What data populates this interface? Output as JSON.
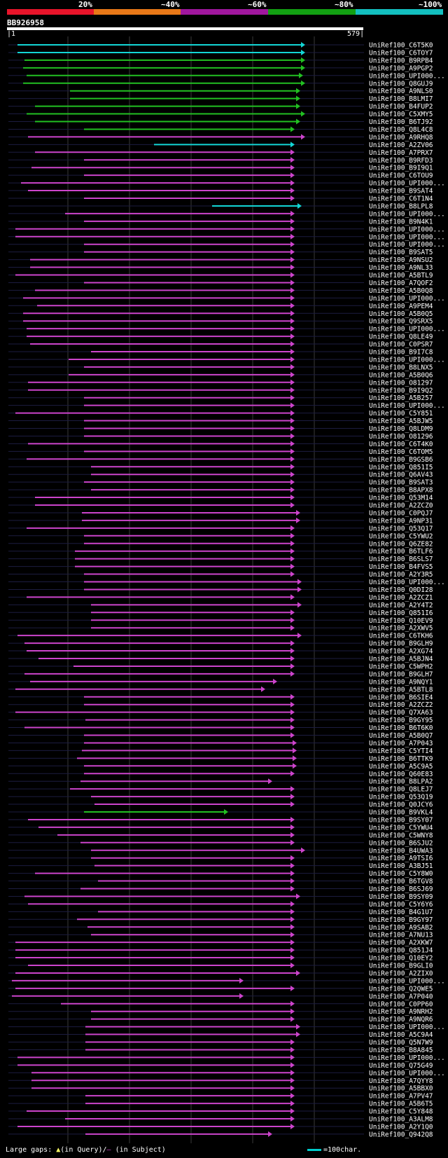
{
  "legend": {
    "labels": [
      "20%",
      "~40%",
      "~60%",
      "~80%",
      "~100%"
    ],
    "colors": [
      "#e8142a",
      "#e87818",
      "#a0179e",
      "#12a012",
      "#13c0c0"
    ]
  },
  "query": {
    "name": "BB926958",
    "start": "1",
    "end": "579"
  },
  "footer": {
    "prefix": "Large gaps: ",
    "query_marker": "▲",
    "query_text": "(in Query)/",
    "subject_marker": "–",
    "subject_text": " (in Subject)",
    "scale_text": "=100char."
  },
  "hits": [
    {
      "label": "UniRef100_C6T5K0",
      "x1": 25,
      "x2": 435,
      "c": "cyan"
    },
    {
      "label": "UniRef100_C6TOY7",
      "x1": 25,
      "x2": 435,
      "c": "cyan"
    },
    {
      "label": "UniRef100_B9RPB4",
      "x1": 35,
      "x2": 435,
      "c": "green"
    },
    {
      "label": "UniRef100_A9PGP2",
      "x1": 33,
      "x2": 435,
      "c": "green"
    },
    {
      "label": "UniRef100_UPI000...",
      "x1": 38,
      "x2": 432,
      "c": "green"
    },
    {
      "label": "UniRef100_Q8GUJ9",
      "x1": 33,
      "x2": 435,
      "c": "green"
    },
    {
      "label": "UniRef100_A9NLS0",
      "x1": 100,
      "x2": 428,
      "c": "green"
    },
    {
      "label": "UniRef100_B8LMI7",
      "x1": 100,
      "x2": 428,
      "c": "green"
    },
    {
      "label": "UniRef100_B4FUP2",
      "x1": 50,
      "x2": 428,
      "c": "green"
    },
    {
      "label": "UniRef100_C5XMY5",
      "x1": 38,
      "x2": 435,
      "c": "green"
    },
    {
      "label": "UniRef100_B6TJ92",
      "x1": 50,
      "x2": 428,
      "c": "green"
    },
    {
      "label": "UniRef100_Q8L4C8",
      "x1": 120,
      "x2": 420,
      "c": "green"
    },
    {
      "label": "UniRef100_A9RHQ8",
      "x1": 40,
      "x2": 435,
      "c": "purple"
    },
    {
      "label": "UniRef100_A2ZV06",
      "x1": 220,
      "x2": 420,
      "c": "cyan"
    },
    {
      "label": "UniRef100_A7PRX7",
      "x1": 50,
      "x2": 420,
      "c": "purple"
    },
    {
      "label": "UniRef100_B9RFD3",
      "x1": 120,
      "x2": 420,
      "c": "purple"
    },
    {
      "label": "UniRef100_B9I9Q1",
      "x1": 45,
      "x2": 420,
      "c": "purple"
    },
    {
      "label": "UniRef100_C6TOU9",
      "x1": 120,
      "x2": 420,
      "c": "purple"
    },
    {
      "label": "UniRef100_UPI000...",
      "x1": 30,
      "x2": 420,
      "c": "purple"
    },
    {
      "label": "UniRef100_B9SAT4",
      "x1": 40,
      "x2": 420,
      "c": "purple"
    },
    {
      "label": "UniRef100_C6T1N4",
      "x1": 120,
      "x2": 420,
      "c": "purple"
    },
    {
      "label": "UniRef100_B8LPL8",
      "x1": 303,
      "x2": 430,
      "c": "cyan"
    },
    {
      "label": "UniRef100_UPI000...",
      "x1": 93,
      "x2": 420,
      "c": "purple"
    },
    {
      "label": "UniRef100_B9N4K1",
      "x1": 120,
      "x2": 420,
      "c": "purple"
    },
    {
      "label": "UniRef100_UPI000...",
      "x1": 22,
      "x2": 420,
      "c": "purple"
    },
    {
      "label": "UniRef100_UPI000...",
      "x1": 22,
      "x2": 420,
      "c": "purple"
    },
    {
      "label": "UniRef100_UPI000...",
      "x1": 120,
      "x2": 420,
      "c": "purple"
    },
    {
      "label": "UniRef100_B9SAT5",
      "x1": 120,
      "x2": 420,
      "c": "purple"
    },
    {
      "label": "UniRef100_A9NSU2",
      "x1": 43,
      "x2": 420,
      "c": "purple"
    },
    {
      "label": "UniRef100_A9NL33",
      "x1": 43,
      "x2": 420,
      "c": "purple"
    },
    {
      "label": "UniRef100_A5BTL9",
      "x1": 22,
      "x2": 420,
      "c": "purple"
    },
    {
      "label": "UniRef100_A7QOF2",
      "x1": 120,
      "x2": 420,
      "c": "purple"
    },
    {
      "label": "UniRef100_A5B0Q8",
      "x1": 50,
      "x2": 420,
      "c": "purple"
    },
    {
      "label": "UniRef100_UPI000...",
      "x1": 33,
      "x2": 420,
      "c": "purple"
    },
    {
      "label": "UniRef100_A9PEM4",
      "x1": 53,
      "x2": 420,
      "c": "purple"
    },
    {
      "label": "UniRef100_A5B0Q5",
      "x1": 33,
      "x2": 420,
      "c": "purple"
    },
    {
      "label": "UniRef100_Q9SRX5",
      "x1": 33,
      "x2": 420,
      "c": "purple"
    },
    {
      "label": "UniRef100_UPI000...",
      "x1": 38,
      "x2": 420,
      "c": "purple"
    },
    {
      "label": "UniRef100_Q8LE49",
      "x1": 38,
      "x2": 420,
      "c": "purple"
    },
    {
      "label": "UniRef100_C0PSR7",
      "x1": 43,
      "x2": 420,
      "c": "purple"
    },
    {
      "label": "UniRef100_B9I7C8",
      "x1": 130,
      "x2": 420,
      "c": "purple"
    },
    {
      "label": "UniRef100_UPI000...",
      "x1": 98,
      "x2": 420,
      "c": "purple"
    },
    {
      "label": "UniRef100_B8LNX5",
      "x1": 120,
      "x2": 420,
      "c": "purple"
    },
    {
      "label": "UniRef100_A5B0Q6",
      "x1": 98,
      "x2": 420,
      "c": "purple"
    },
    {
      "label": "UniRef100_O81297",
      "x1": 40,
      "x2": 420,
      "c": "purple"
    },
    {
      "label": "UniRef100_B9I9Q2",
      "x1": 40,
      "x2": 420,
      "c": "purple"
    },
    {
      "label": "UniRef100_A5B257",
      "x1": 120,
      "x2": 420,
      "c": "purple"
    },
    {
      "label": "UniRef100_UPI000...",
      "x1": 120,
      "x2": 420,
      "c": "purple"
    },
    {
      "label": "UniRef100_C5Y851",
      "x1": 22,
      "x2": 420,
      "c": "purple"
    },
    {
      "label": "UniRef100_A5BJW5",
      "x1": 120,
      "x2": 420,
      "c": "purple"
    },
    {
      "label": "UniRef100_Q8LDM9",
      "x1": 120,
      "x2": 420,
      "c": "purple"
    },
    {
      "label": "UniRef100_O81296",
      "x1": 120,
      "x2": 420,
      "c": "purple"
    },
    {
      "label": "UniRef100_C6T4K0",
      "x1": 40,
      "x2": 420,
      "c": "purple"
    },
    {
      "label": "UniRef100_C6TOM5",
      "x1": 120,
      "x2": 420,
      "c": "purple"
    },
    {
      "label": "UniRef100_B9GSB6",
      "x1": 38,
      "x2": 420,
      "c": "purple"
    },
    {
      "label": "UniRef100_Q851I5",
      "x1": 130,
      "x2": 420,
      "c": "purple"
    },
    {
      "label": "UniRef100_Q6AV43",
      "x1": 130,
      "x2": 420,
      "c": "purple"
    },
    {
      "label": "UniRef100_B9SAT3",
      "x1": 120,
      "x2": 420,
      "c": "purple"
    },
    {
      "label": "UniRef100_B8APX8",
      "x1": 130,
      "x2": 420,
      "c": "purple"
    },
    {
      "label": "UniRef100_Q53M14",
      "x1": 50,
      "x2": 420,
      "c": "purple"
    },
    {
      "label": "UniRef100_A2ZCZ0",
      "x1": 50,
      "x2": 420,
      "c": "purple"
    },
    {
      "label": "UniRef100_C0PQJ7",
      "x1": 117,
      "x2": 428,
      "c": "purple"
    },
    {
      "label": "UniRef100_A9NP31",
      "x1": 117,
      "x2": 428,
      "c": "purple"
    },
    {
      "label": "UniRef100_Q53Q17",
      "x1": 38,
      "x2": 420,
      "c": "purple"
    },
    {
      "label": "UniRef100_C5YWU2",
      "x1": 120,
      "x2": 420,
      "c": "purple"
    },
    {
      "label": "UniRef100_Q6ZE82",
      "x1": 120,
      "x2": 420,
      "c": "purple"
    },
    {
      "label": "UniRef100_B6TLF6",
      "x1": 107,
      "x2": 420,
      "c": "purple"
    },
    {
      "label": "UniRef100_B6SLS7",
      "x1": 107,
      "x2": 420,
      "c": "purple"
    },
    {
      "label": "UniRef100_B4FVS5",
      "x1": 107,
      "x2": 420,
      "c": "purple"
    },
    {
      "label": "UniRef100_A2Y3R5",
      "x1": 120,
      "x2": 420,
      "c": "purple"
    },
    {
      "label": "UniRef100_UPI000...",
      "x1": 120,
      "x2": 430,
      "c": "purple"
    },
    {
      "label": "UniRef100_Q0DI28",
      "x1": 120,
      "x2": 430,
      "c": "purple"
    },
    {
      "label": "UniRef100_A2ZCZ1",
      "x1": 38,
      "x2": 420,
      "c": "purple"
    },
    {
      "label": "UniRef100_A2Y4T2",
      "x1": 130,
      "x2": 430,
      "c": "purple"
    },
    {
      "label": "UniRef100_Q851I6",
      "x1": 130,
      "x2": 420,
      "c": "purple"
    },
    {
      "label": "UniRef100_Q10EV9",
      "x1": 130,
      "x2": 420,
      "c": "purple"
    },
    {
      "label": "UniRef100_A2XWV5",
      "x1": 130,
      "x2": 420,
      "c": "purple"
    },
    {
      "label": "UniRef100_C6TKH6",
      "x1": 25,
      "x2": 430,
      "c": "purple"
    },
    {
      "label": "UniRef100_B9GLH9",
      "x1": 35,
      "x2": 420,
      "c": "purple"
    },
    {
      "label": "UniRef100_A2XG74",
      "x1": 38,
      "x2": 420,
      "c": "purple"
    },
    {
      "label": "UniRef100_A5BJN4",
      "x1": 55,
      "x2": 420,
      "c": "purple"
    },
    {
      "label": "UniRef100_C5WPH2",
      "x1": 105,
      "x2": 420,
      "c": "purple"
    },
    {
      "label": "UniRef100_B9GLH7",
      "x1": 35,
      "x2": 420,
      "c": "purple"
    },
    {
      "label": "UniRef100_A9NQY1",
      "x1": 43,
      "x2": 395,
      "c": "purple"
    },
    {
      "label": "UniRef100_A5BTL8",
      "x1": 22,
      "x2": 378,
      "c": "purple"
    },
    {
      "label": "UniRef100_B6SIE4",
      "x1": 120,
      "x2": 420,
      "c": "purple"
    },
    {
      "label": "UniRef100_A2ZCZ2",
      "x1": 120,
      "x2": 420,
      "c": "purple"
    },
    {
      "label": "UniRef100_Q7XA63",
      "x1": 22,
      "x2": 420,
      "c": "purple"
    },
    {
      "label": "UniRef100_B9GY95",
      "x1": 122,
      "x2": 420,
      "c": "purple"
    },
    {
      "label": "UniRef100_B6T6K0",
      "x1": 35,
      "x2": 420,
      "c": "purple"
    },
    {
      "label": "UniRef100_A5B0Q7",
      "x1": 120,
      "x2": 420,
      "c": "purple"
    },
    {
      "label": "UniRef100_A7P043",
      "x1": 120,
      "x2": 423,
      "c": "purple"
    },
    {
      "label": "UniRef100_C5YTI4",
      "x1": 117,
      "x2": 423,
      "c": "purple"
    },
    {
      "label": "UniRef100_B6TTK9",
      "x1": 110,
      "x2": 423,
      "c": "purple"
    },
    {
      "label": "UniRef100_A5C9A5",
      "x1": 120,
      "x2": 423,
      "c": "purple"
    },
    {
      "label": "UniRef100_Q60E83",
      "x1": 120,
      "x2": 420,
      "c": "purple"
    },
    {
      "label": "UniRef100_B8LPA2",
      "x1": 115,
      "x2": 388,
      "c": "purple"
    },
    {
      "label": "UniRef100_Q8LEJ7",
      "x1": 100,
      "x2": 420,
      "c": "purple"
    },
    {
      "label": "UniRef100_Q53Q19",
      "x1": 130,
      "x2": 420,
      "c": "purple"
    },
    {
      "label": "UniRef100_Q0JCY6",
      "x1": 135,
      "x2": 420,
      "c": "purple"
    },
    {
      "label": "UniRef100_B9VKL4",
      "x1": 120,
      "x2": 325,
      "c": "green"
    },
    {
      "label": "UniRef100_B9SY07",
      "x1": 40,
      "x2": 420,
      "c": "purple"
    },
    {
      "label": "UniRef100_C5YWU4",
      "x1": 55,
      "x2": 420,
      "c": "purple"
    },
    {
      "label": "UniRef100_C5WNY8",
      "x1": 82,
      "x2": 420,
      "c": "purple"
    },
    {
      "label": "UniRef100_B6SJU2",
      "x1": 115,
      "x2": 420,
      "c": "purple"
    },
    {
      "label": "UniRef100_B4UWA3",
      "x1": 130,
      "x2": 435,
      "c": "purple"
    },
    {
      "label": "UniRef100_A9TSI6",
      "x1": 130,
      "x2": 420,
      "c": "purple"
    },
    {
      "label": "UniRef100_A3BJ51",
      "x1": 135,
      "x2": 420,
      "c": "purple"
    },
    {
      "label": "UniRef100_C5Y8W0",
      "x1": 50,
      "x2": 420,
      "c": "purple"
    },
    {
      "label": "UniRef100_B6TGV8",
      "x1": 140,
      "x2": 420,
      "c": "purple"
    },
    {
      "label": "UniRef100_B6SJ69",
      "x1": 115,
      "x2": 420,
      "c": "purple"
    },
    {
      "label": "UniRef100_B9SY09",
      "x1": 35,
      "x2": 428,
      "c": "purple"
    },
    {
      "label": "UniRef100_C5Y6Y6",
      "x1": 40,
      "x2": 420,
      "c": "purple"
    },
    {
      "label": "UniRef100_B4G1U7",
      "x1": 140,
      "x2": 420,
      "c": "purple"
    },
    {
      "label": "UniRef100_B9GY97",
      "x1": 110,
      "x2": 420,
      "c": "purple"
    },
    {
      "label": "UniRef100_A9SAB2",
      "x1": 125,
      "x2": 420,
      "c": "purple"
    },
    {
      "label": "UniRef100_A7NU13",
      "x1": 130,
      "x2": 420,
      "c": "purple"
    },
    {
      "label": "UniRef100_A2XKW7",
      "x1": 22,
      "x2": 420,
      "c": "purple"
    },
    {
      "label": "UniRef100_Q851J4",
      "x1": 22,
      "x2": 420,
      "c": "purple"
    },
    {
      "label": "UniRef100_Q10EY2",
      "x1": 22,
      "x2": 420,
      "c": "purple"
    },
    {
      "label": "UniRef100_B9GLI0",
      "x1": 40,
      "x2": 420,
      "c": "purple"
    },
    {
      "label": "UniRef100_A2ZIX0",
      "x1": 22,
      "x2": 428,
      "c": "purple"
    },
    {
      "label": "UniRef100_UPI000...",
      "x1": 17,
      "x2": 347,
      "c": "purple"
    },
    {
      "label": "UniRef100_Q2QWE5",
      "x1": 22,
      "x2": 420,
      "c": "purple"
    },
    {
      "label": "UniRef100_A7P040",
      "x1": 17,
      "x2": 347,
      "c": "purple"
    },
    {
      "label": "UniRef100_C0PP60",
      "x1": 87,
      "x2": 420,
      "c": "purple"
    },
    {
      "label": "UniRef100_A9NRH2",
      "x1": 130,
      "x2": 420,
      "c": "purple"
    },
    {
      "label": "UniRef100_A9NQR6",
      "x1": 130,
      "x2": 420,
      "c": "purple"
    },
    {
      "label": "UniRef100_UPI000...",
      "x1": 122,
      "x2": 428,
      "c": "purple"
    },
    {
      "label": "UniRef100_A5C9A4",
      "x1": 122,
      "x2": 428,
      "c": "purple"
    },
    {
      "label": "UniRef100_Q5N7W9",
      "x1": 122,
      "x2": 420,
      "c": "purple"
    },
    {
      "label": "UniRef100_B8A845",
      "x1": 122,
      "x2": 420,
      "c": "purple"
    },
    {
      "label": "UniRef100_UPI000...",
      "x1": 25,
      "x2": 420,
      "c": "purple"
    },
    {
      "label": "UniRef100_Q75G49",
      "x1": 25,
      "x2": 420,
      "c": "purple"
    },
    {
      "label": "UniRef100_UPI000...",
      "x1": 45,
      "x2": 420,
      "c": "purple"
    },
    {
      "label": "UniRef100_A7QYY8",
      "x1": 45,
      "x2": 420,
      "c": "purple"
    },
    {
      "label": "UniRef100_A5BBX0",
      "x1": 45,
      "x2": 420,
      "c": "purple"
    },
    {
      "label": "UniRef100_A7PV47",
      "x1": 122,
      "x2": 420,
      "c": "purple"
    },
    {
      "label": "UniRef100_A5B6T5",
      "x1": 122,
      "x2": 420,
      "c": "purple"
    },
    {
      "label": "UniRef100_C5Y848",
      "x1": 38,
      "x2": 420,
      "c": "purple"
    },
    {
      "label": "UniRef100_A3ALM8",
      "x1": 93,
      "x2": 420,
      "c": "purple"
    },
    {
      "label": "UniRef100_A2Y1Q0",
      "x1": 25,
      "x2": 420,
      "c": "purple"
    },
    {
      "label": "UniRef100_Q942Q8",
      "x1": 122,
      "x2": 388,
      "c": "purple"
    }
  ]
}
